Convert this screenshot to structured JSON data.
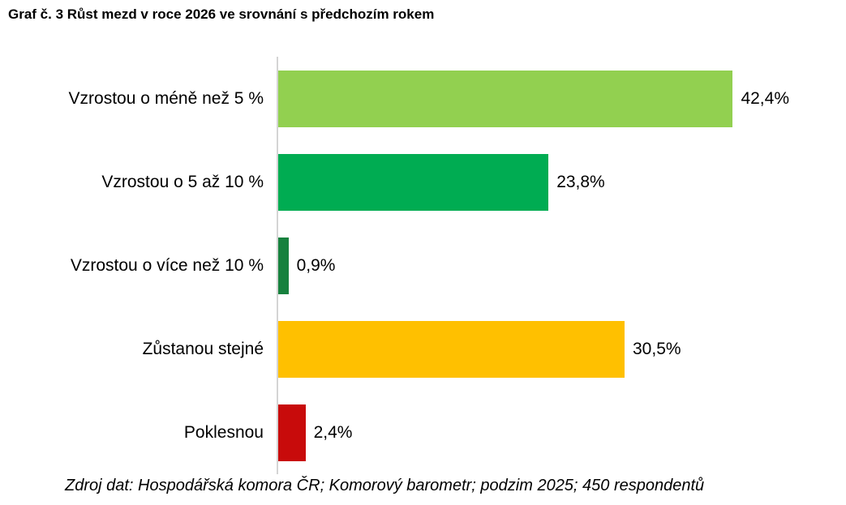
{
  "title": "Graf č. 3 Růst mezd v roce 2026 ve srovnání s předchozím rokem",
  "source": "Zdroj dat: Hospodářská komora ČR; Komorový barometr; podzim 2025; 450 respondentů",
  "chart_data": {
    "type": "bar",
    "orientation": "horizontal",
    "title": "Graf č. 3 Růst mezd v roce 2026 ve srovnání s předchozím rokem",
    "categories": [
      "Vzrostou o méně než 5 %",
      "Vzrostou o 5 až 10 %",
      "Vzrostou o více než 10 %",
      "Zůstanou stejné",
      "Poklesnou"
    ],
    "values": [
      42.4,
      23.8,
      0.9,
      30.5,
      2.4
    ],
    "value_labels": [
      "42,4%",
      "23,8%",
      "0,9%",
      "30,5%",
      "2,4%"
    ],
    "bar_colors": [
      "#92D050",
      "#00AC52",
      "#17813E",
      "#FFC000",
      "#C80B0B"
    ],
    "xlabel": "",
    "ylabel": "",
    "xlim": [
      0,
      45
    ],
    "grid": false,
    "legend": false,
    "axis_line_color": "#D4D4D4",
    "footnote": "Zdroj dat: Hospodářská komora ČR; Komorový barometr; podzim 2025; 450 respondentů"
  }
}
